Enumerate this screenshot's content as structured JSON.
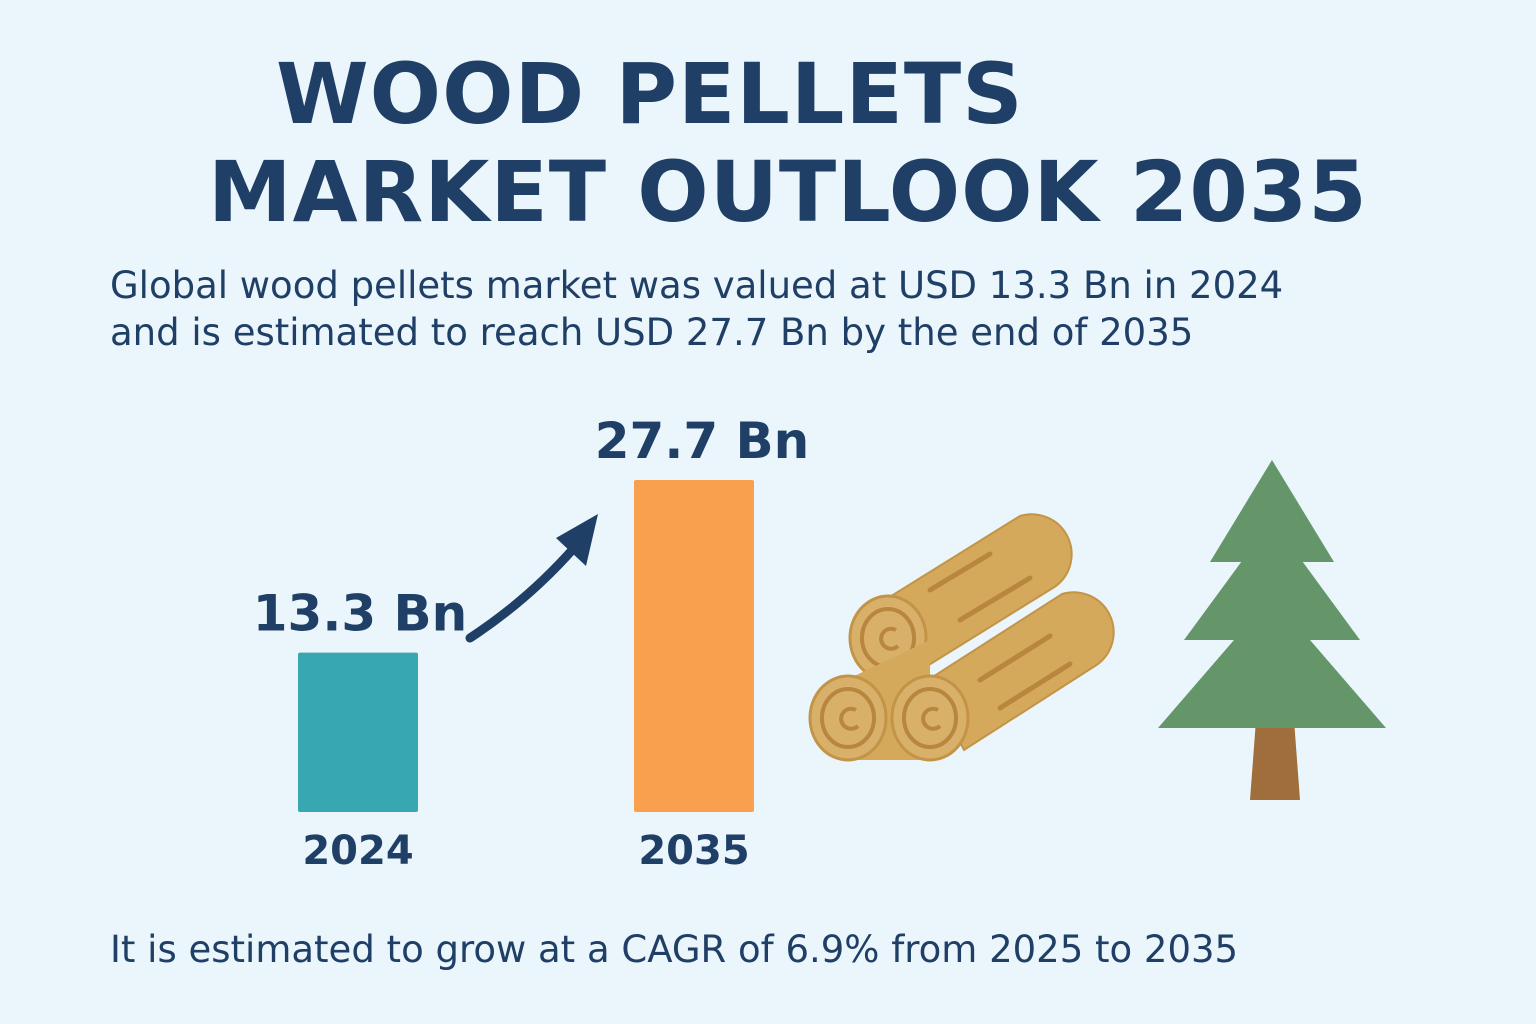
{
  "title_line1": "WOOD PELLETS",
  "title_line2": "MARKET OUTLOOK 2035",
  "intro_line1": "Global wood pellets market was valued at USD 13.3 Bn in 2024",
  "intro_line2": "and is estimated to reach USD 27.7 Bn by the end of 2035",
  "footer": "It is estimated to grow at a CAGR of 6.9% from 2025 to 2035",
  "chart_data": {
    "type": "bar",
    "categories": [
      "2024",
      "2035"
    ],
    "values": [
      13.3,
      27.7
    ],
    "data_labels": [
      "13.3 Bn",
      "27.7 Bn"
    ],
    "colors": [
      "#37a8b2",
      "#f8a04e"
    ],
    "title": "",
    "xlabel": "",
    "ylabel": "",
    "ylim": [
      0,
      27.7
    ],
    "grid": false
  },
  "colors": {
    "text": "#1f3f66",
    "background": "#eaf6fb",
    "log": "#d4a95c",
    "tree": "#64966a",
    "trunk": "#a06e3c"
  },
  "icons": [
    "growth-arrow-icon",
    "logs-icon",
    "pine-tree-icon"
  ]
}
